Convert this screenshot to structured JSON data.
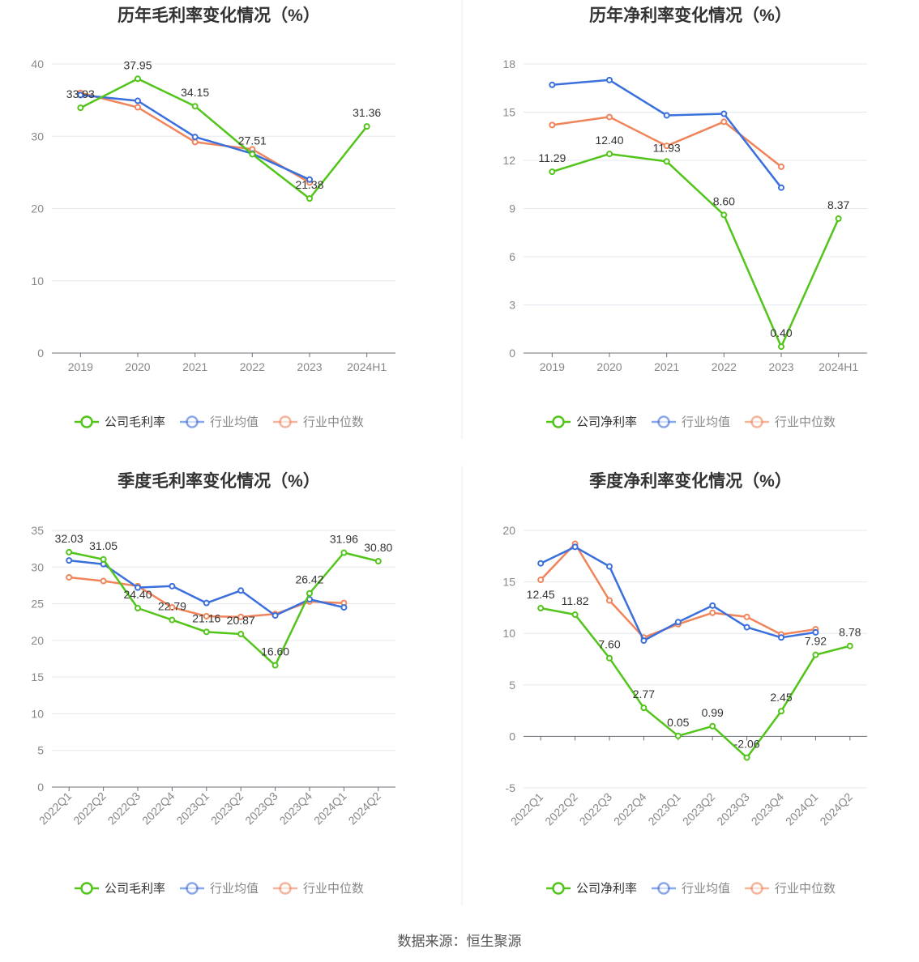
{
  "colors": {
    "company": "#52c41a",
    "avg": "#3a6fdc",
    "median": "#f0845a"
  },
  "legend": {
    "gross": [
      "公司毛利率",
      "行业均值",
      "行业中位数"
    ],
    "net": [
      "公司净利率",
      "行业均值",
      "行业中位数"
    ]
  },
  "source": "数据来源：恒生聚源",
  "chart_data": [
    {
      "type": "line",
      "title": "历年毛利率变化情况（%）",
      "categories": [
        "2019",
        "2020",
        "2021",
        "2022",
        "2023",
        "2024H1"
      ],
      "ylim": [
        0,
        40
      ],
      "yticks": [
        0,
        10,
        20,
        30,
        40
      ],
      "series": [
        {
          "name": "公司毛利率",
          "values": [
            33.93,
            37.95,
            34.15,
            27.51,
            21.38,
            31.36
          ],
          "labels": true
        },
        {
          "name": "行业均值",
          "values": [
            35.7,
            34.9,
            29.9,
            27.6,
            24.0,
            null
          ]
        },
        {
          "name": "行业中位数",
          "values": [
            36.0,
            34.0,
            29.2,
            28.2,
            23.6,
            null
          ]
        }
      ]
    },
    {
      "type": "line",
      "title": "历年净利率变化情况（%）",
      "categories": [
        "2019",
        "2020",
        "2021",
        "2022",
        "2023",
        "2024H1"
      ],
      "ylim": [
        0,
        18
      ],
      "yticks": [
        0,
        3,
        6,
        9,
        12,
        15,
        18
      ],
      "series": [
        {
          "name": "公司净利率",
          "values": [
            11.29,
            12.4,
            11.93,
            8.6,
            0.4,
            8.37
          ],
          "labels": true
        },
        {
          "name": "行业均值",
          "values": [
            16.7,
            17.0,
            14.8,
            14.9,
            10.3,
            null
          ]
        },
        {
          "name": "行业中位数",
          "values": [
            14.2,
            14.7,
            12.9,
            14.4,
            11.6,
            null
          ]
        }
      ]
    },
    {
      "type": "line",
      "title": "季度毛利率变化情况（%）",
      "categories": [
        "2022Q1",
        "2022Q2",
        "2022Q3",
        "2022Q4",
        "2023Q1",
        "2023Q2",
        "2023Q3",
        "2023Q4",
        "2024Q1",
        "2024Q2"
      ],
      "ylim": [
        0,
        35
      ],
      "yticks": [
        0,
        5,
        10,
        15,
        20,
        25,
        30,
        35
      ],
      "series": [
        {
          "name": "公司毛利率",
          "values": [
            32.03,
            31.05,
            24.4,
            22.79,
            21.16,
            20.87,
            16.6,
            26.42,
            31.96,
            30.8
          ],
          "labels": true
        },
        {
          "name": "行业均值",
          "values": [
            30.9,
            30.4,
            27.2,
            27.4,
            25.1,
            26.8,
            23.4,
            25.6,
            24.5,
            null
          ]
        },
        {
          "name": "行业中位数",
          "values": [
            28.6,
            28.1,
            27.4,
            24.5,
            23.3,
            23.2,
            23.6,
            25.3,
            25.1,
            null
          ]
        }
      ]
    },
    {
      "type": "line",
      "title": "季度净利率变化情况（%）",
      "categories": [
        "2022Q1",
        "2022Q2",
        "2022Q3",
        "2022Q4",
        "2023Q1",
        "2023Q2",
        "2023Q3",
        "2023Q4",
        "2024Q1",
        "2024Q2"
      ],
      "ylim": [
        -5,
        20
      ],
      "yticks": [
        -5,
        0,
        5,
        10,
        15,
        20
      ],
      "series": [
        {
          "name": "公司净利率",
          "values": [
            12.45,
            11.82,
            7.6,
            2.77,
            0.05,
            0.99,
            -2.06,
            2.45,
            7.92,
            8.78
          ],
          "labels": true
        },
        {
          "name": "行业均值",
          "values": [
            16.8,
            18.4,
            16.5,
            9.3,
            11.1,
            12.7,
            10.6,
            9.6,
            10.1,
            null
          ]
        },
        {
          "name": "行业中位数",
          "values": [
            15.2,
            18.7,
            13.2,
            9.6,
            10.9,
            12.0,
            11.6,
            9.9,
            10.4,
            null
          ]
        }
      ]
    }
  ]
}
